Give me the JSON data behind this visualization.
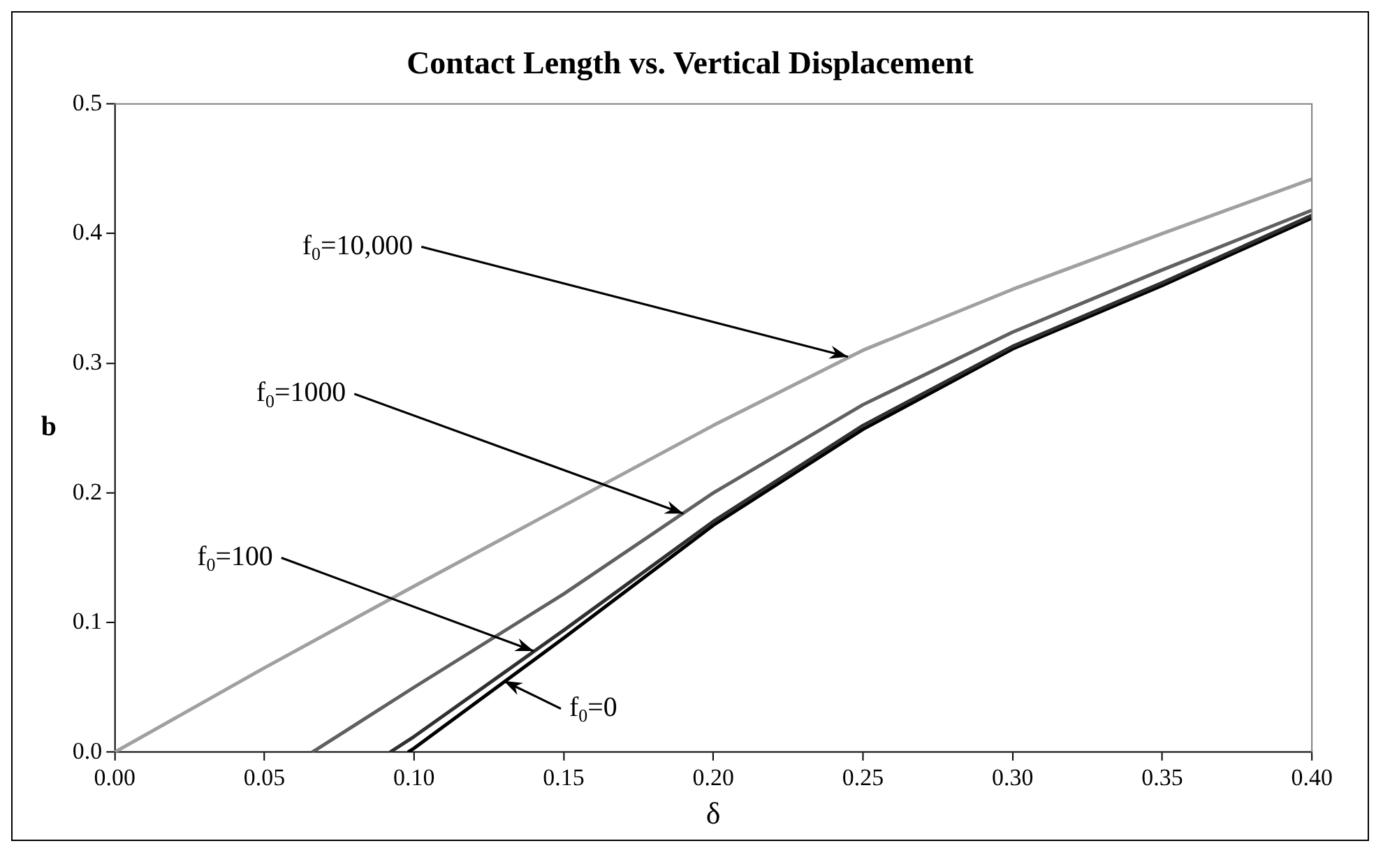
{
  "chart_data": {
    "type": "line",
    "title": "Contact Length vs. Vertical Displacement",
    "xlabel": "δ",
    "ylabel": "b",
    "xlim": [
      0,
      0.4
    ],
    "ylim": [
      0,
      0.5
    ],
    "xticks": [
      {
        "value": 0,
        "label": "0.00"
      },
      {
        "value": 0.05,
        "label": "0.05"
      },
      {
        "value": 0.1,
        "label": "0.10"
      },
      {
        "value": 0.15,
        "label": "0.15"
      },
      {
        "value": 0.2,
        "label": "0.20"
      },
      {
        "value": 0.25,
        "label": "0.25"
      },
      {
        "value": 0.3,
        "label": "0.30"
      },
      {
        "value": 0.35,
        "label": "0.35"
      },
      {
        "value": 0.4,
        "label": "0.40"
      }
    ],
    "yticks": [
      {
        "value": 0,
        "label": "0.0"
      },
      {
        "value": 0.1,
        "label": "0.1"
      },
      {
        "value": 0.2,
        "label": "0.2"
      },
      {
        "value": 0.3,
        "label": "0.3"
      },
      {
        "value": 0.4,
        "label": "0.4"
      },
      {
        "value": 0.5,
        "label": "0.5"
      }
    ],
    "grid": false,
    "legend": false,
    "marker": "none",
    "line_style": "solid",
    "series": [
      {
        "color": "#a0a0a0",
        "x": [
          0,
          0.05,
          0.1,
          0.15,
          0.2,
          0.25,
          0.3,
          0.35,
          0.4
        ],
        "values": [
          0,
          0.065,
          0.128,
          0.19,
          0.252,
          0.31,
          0.357,
          0.4,
          0.442
        ]
      },
      {
        "color": "#606060",
        "x": [
          0.066,
          0.1,
          0.15,
          0.2,
          0.25,
          0.3,
          0.35,
          0.4
        ],
        "values": [
          0,
          0.05,
          0.122,
          0.2,
          0.268,
          0.324,
          0.372,
          0.418
        ]
      },
      {
        "color": "#303030",
        "x": [
          0.092,
          0.1,
          0.15,
          0.2,
          0.25,
          0.3,
          0.35,
          0.4
        ],
        "values": [
          0,
          0.012,
          0.094,
          0.178,
          0.252,
          0.313,
          0.362,
          0.414
        ]
      },
      {
        "color": "#000000",
        "x": [
          0.098,
          0.1,
          0.15,
          0.2,
          0.25,
          0.3,
          0.35,
          0.4
        ],
        "values": [
          0,
          0.003,
          0.088,
          0.175,
          0.249,
          0.311,
          0.36,
          0.412
        ]
      }
    ],
    "annotations": [
      {
        "text": "f$_{0}$=10,000",
        "x": 0.245,
        "y": 0.305
      },
      {
        "text": "f$_{0}$=1000",
        "x": 0.19,
        "y": 0.184
      },
      {
        "text": "f$_{0}$=100",
        "x": 0.14,
        "y": 0.078
      },
      {
        "text": "f$_{0}$=0",
        "x": 0.13,
        "y": 0.055
      }
    ]
  }
}
